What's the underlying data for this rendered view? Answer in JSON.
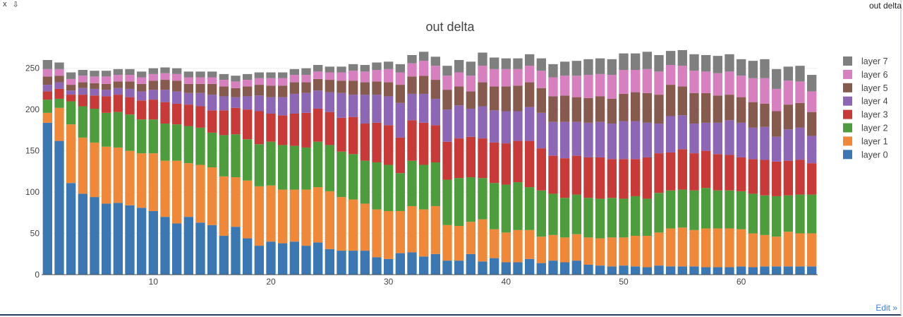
{
  "toolbar": {
    "close_label": "x",
    "download_icon": "⇩"
  },
  "header": {
    "right_label": "out delta"
  },
  "footer": {
    "edit_label": "Edit »"
  },
  "colors": [
    "#3a77b3",
    "#f0883a",
    "#4e9d3d",
    "#c73a37",
    "#8d67b6",
    "#875a4e",
    "#d87fc0",
    "#7f7f7f"
  ],
  "chart_data": {
    "type": "bar",
    "stacked": true,
    "title": "out delta",
    "xlabel": "",
    "ylabel": "",
    "xlim": [
      0.5,
      66.5
    ],
    "ylim": [
      0,
      260
    ],
    "xticks": [
      10,
      20,
      30,
      40,
      50,
      60
    ],
    "yticks": [
      0,
      50,
      100,
      150,
      200,
      250
    ],
    "grid": true,
    "legend_position": "right",
    "x": [
      1,
      2,
      3,
      4,
      5,
      6,
      7,
      8,
      9,
      10,
      11,
      12,
      13,
      14,
      15,
      16,
      17,
      18,
      19,
      20,
      21,
      22,
      23,
      24,
      25,
      26,
      27,
      28,
      29,
      30,
      31,
      32,
      33,
      34,
      35,
      36,
      37,
      38,
      39,
      40,
      41,
      42,
      43,
      44,
      45,
      46,
      47,
      48,
      49,
      50,
      51,
      52,
      53,
      54,
      55,
      56,
      57,
      58,
      59,
      60,
      61,
      62,
      63,
      64,
      65,
      66
    ],
    "series": [
      {
        "name": "layer 0",
        "values": [
          184,
          162,
          111,
          98,
          94,
          86,
          87,
          84,
          81,
          77,
          70,
          62,
          70,
          63,
          60,
          47,
          58,
          44,
          35,
          40,
          38,
          40,
          35,
          39,
          31,
          29,
          29,
          29,
          21,
          19,
          26,
          27,
          22,
          25,
          17,
          17,
          25,
          16,
          20,
          15,
          15,
          19,
          14,
          17,
          15,
          17,
          12,
          11,
          10,
          11,
          10,
          9,
          11,
          10,
          10,
          10,
          9,
          9,
          9,
          10,
          9,
          10,
          10,
          10,
          10,
          10
        ]
      },
      {
        "name": "layer 1",
        "values": [
          12,
          40,
          71,
          68,
          66,
          69,
          67,
          66,
          66,
          70,
          68,
          76,
          65,
          70,
          70,
          72,
          60,
          70,
          72,
          68,
          65,
          63,
          68,
          67,
          70,
          65,
          62,
          57,
          58,
          58,
          51,
          56,
          57,
          58,
          43,
          42,
          39,
          51,
          35,
          36,
          39,
          35,
          32,
          31,
          30,
          32,
          33,
          33,
          35,
          34,
          37,
          38,
          40,
          46,
          47,
          44,
          47,
          47,
          47,
          45,
          41,
          38,
          36,
          42,
          40,
          40
        ]
      },
      {
        "name": "layer 2",
        "values": [
          16,
          11,
          28,
          38,
          41,
          41,
          43,
          44,
          41,
          41,
          45,
          44,
          45,
          45,
          42,
          50,
          52,
          50,
          51,
          53,
          54,
          53,
          51,
          55,
          56,
          55,
          55,
          52,
          57,
          56,
          46,
          55,
          54,
          53,
          55,
          58,
          54,
          50,
          56,
          58,
          58,
          52,
          56,
          50,
          48,
          48,
          48,
          48,
          48,
          47,
          48,
          45,
          48,
          46,
          46,
          48,
          49,
          46,
          46,
          46,
          48,
          48,
          49,
          44,
          47,
          47
        ]
      },
      {
        "name": "layer 3",
        "values": [
          10,
          12,
          8,
          14,
          16,
          20,
          21,
          21,
          23,
          24,
          26,
          25,
          26,
          26,
          27,
          30,
          32,
          36,
          40,
          34,
          36,
          39,
          42,
          40,
          40,
          41,
          45,
          45,
          48,
          48,
          43,
          49,
          51,
          45,
          46,
          48,
          49,
          48,
          49,
          50,
          50,
          56,
          51,
          46,
          48,
          47,
          49,
          50,
          47,
          48,
          45,
          50,
          48,
          46,
          49,
          45,
          45,
          44,
          43,
          41,
          42,
          43,
          42,
          42,
          42,
          38
        ]
      },
      {
        "name": "layer 4",
        "values": [
          8,
          8,
          5,
          8,
          8,
          8,
          8,
          10,
          11,
          12,
          15,
          15,
          14,
          16,
          19,
          17,
          13,
          16,
          19,
          20,
          22,
          24,
          24,
          22,
          24,
          30,
          27,
          35,
          34,
          35,
          42,
          32,
          35,
          32,
          39,
          40,
          34,
          39,
          39,
          39,
          36,
          41,
          43,
          41,
          44,
          41,
          42,
          43,
          43,
          46,
          46,
          42,
          36,
          44,
          41,
          36,
          34,
          38,
          42,
          42,
          38,
          40,
          30,
          38,
          39,
          33
        ]
      },
      {
        "name": "layer 5",
        "values": [
          10,
          8,
          7,
          7,
          7,
          7,
          8,
          9,
          9,
          11,
          12,
          13,
          11,
          11,
          13,
          12,
          11,
          12,
          13,
          14,
          14,
          14,
          13,
          14,
          15,
          15,
          17,
          15,
          16,
          17,
          22,
          21,
          22,
          23,
          24,
          23,
          21,
          29,
          29,
          30,
          31,
          30,
          30,
          31,
          32,
          30,
          30,
          31,
          30,
          33,
          35,
          36,
          35,
          38,
          35,
          37,
          36,
          33,
          31,
          31,
          31,
          28,
          31,
          30,
          30,
          29
        ]
      },
      {
        "name": "layer 6",
        "values": [
          9,
          8,
          7,
          8,
          8,
          9,
          8,
          8,
          8,
          8,
          8,
          8,
          8,
          8,
          8,
          8,
          8,
          8,
          8,
          9,
          9,
          9,
          9,
          9,
          9,
          10,
          12,
          13,
          14,
          16,
          15,
          16,
          18,
          17,
          17,
          17,
          19,
          20,
          21,
          21,
          20,
          20,
          21,
          23,
          24,
          26,
          28,
          27,
          29,
          29,
          27,
          29,
          28,
          24,
          25,
          27,
          26,
          27,
          28,
          26,
          29,
          31,
          27,
          29,
          26,
          25
        ]
      },
      {
        "name": "layer 7",
        "values": [
          11,
          8,
          8,
          7,
          7,
          7,
          7,
          7,
          7,
          7,
          7,
          7,
          7,
          7,
          7,
          7,
          7,
          7,
          7,
          7,
          7,
          7,
          8,
          8,
          7,
          7,
          8,
          8,
          9,
          9,
          10,
          10,
          11,
          11,
          12,
          15,
          17,
          16,
          14,
          13,
          13,
          14,
          15,
          16,
          17,
          18,
          19,
          19,
          19,
          20,
          20,
          21,
          20,
          17,
          19,
          20,
          20,
          21,
          21,
          20,
          21,
          23,
          24,
          17,
          19,
          20
        ]
      }
    ]
  }
}
